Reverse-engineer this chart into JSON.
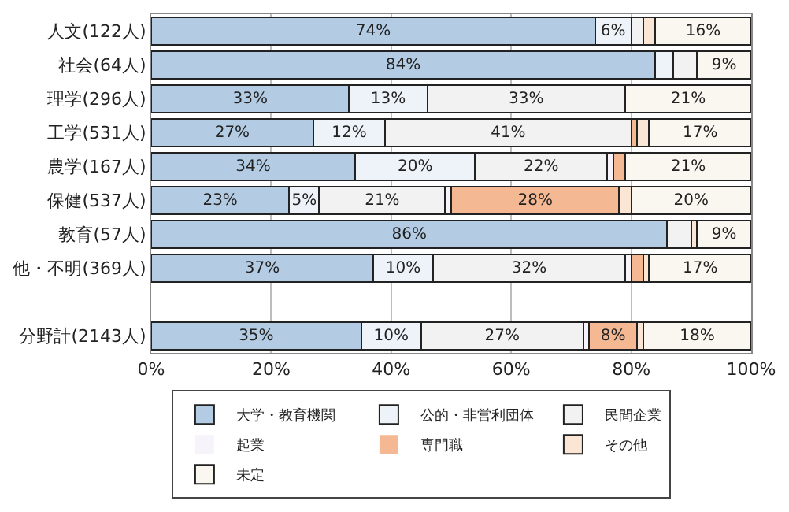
{
  "chart_data": {
    "type": "bar",
    "orientation": "horizontal",
    "stacked": true,
    "categories": [
      "人文(122人)",
      "社会(64人)",
      "理学(296人)",
      "工学(531人)",
      "農学(167人)",
      "保健(537人)",
      "教育(57人)",
      "他・不明(369人)",
      null,
      "分野計(2143人)"
    ],
    "series": [
      {
        "name": "大学・教育機関",
        "color": "#b3cce3",
        "values": [
          74,
          84,
          33,
          27,
          34,
          23,
          86,
          37,
          null,
          35
        ],
        "value_labels": [
          "74%",
          "84%",
          "33%",
          "27%",
          "34%",
          "23%",
          "86%",
          "37%",
          null,
          "35%"
        ]
      },
      {
        "name": "公的・非営利団体",
        "color": "#eef3f9",
        "values": [
          6,
          3,
          13,
          12,
          20,
          5,
          0,
          10,
          null,
          10
        ],
        "value_labels": [
          "6%",
          null,
          "13%",
          "12%",
          "20%",
          "5%",
          null,
          "10%",
          null,
          "10%"
        ]
      },
      {
        "name": "民間企業",
        "color": "#f2f2f2",
        "values": [
          2,
          4,
          33,
          41,
          22,
          21,
          4,
          32,
          null,
          27
        ],
        "value_labels": [
          null,
          null,
          "33%",
          "41%",
          "22%",
          "21%",
          null,
          "32%",
          null,
          "27%"
        ]
      },
      {
        "name": "起業",
        "color": "#f7f3fa",
        "values": [
          0,
          0,
          0,
          0,
          1,
          1,
          0,
          1,
          null,
          1
        ],
        "value_labels": [
          null,
          null,
          null,
          null,
          null,
          null,
          null,
          null,
          null,
          null
        ]
      },
      {
        "name": "専門職",
        "color": "#f4b992",
        "values": [
          0,
          0,
          0,
          1,
          2,
          28,
          0,
          2,
          null,
          8
        ],
        "value_labels": [
          null,
          null,
          null,
          null,
          null,
          "28%",
          null,
          null,
          null,
          "8%"
        ]
      },
      {
        "name": "その他",
        "color": "#fbe6d6",
        "values": [
          2,
          0,
          0,
          2,
          0,
          2,
          1,
          1,
          null,
          1
        ],
        "value_labels": [
          null,
          null,
          null,
          null,
          null,
          null,
          null,
          null,
          null,
          null
        ]
      },
      {
        "name": "未定",
        "color": "#faf6f0",
        "values": [
          16,
          9,
          21,
          17,
          21,
          20,
          9,
          17,
          null,
          18
        ],
        "value_labels": [
          "16%",
          "9%",
          "21%",
          "17%",
          "21%",
          "20%",
          "9%",
          "17%",
          null,
          "18%"
        ]
      }
    ],
    "xlim": [
      0,
      100
    ],
    "xticks": [
      {
        "value": 0,
        "label": "0%"
      },
      {
        "value": 20,
        "label": "20%"
      },
      {
        "value": 40,
        "label": "40%"
      },
      {
        "value": 60,
        "label": "60%"
      },
      {
        "value": 80,
        "label": "80%"
      },
      {
        "value": 100,
        "label": "100%"
      }
    ],
    "grid": "x",
    "legend": "bottom"
  }
}
